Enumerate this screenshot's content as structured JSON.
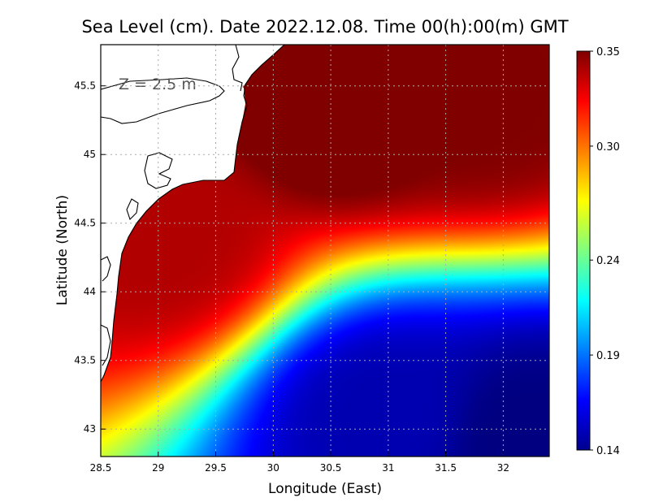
{
  "chart_data": {
    "type": "heatmap",
    "title": "Sea Level (cm). Date 2022.12.08. Time 00(h):00(m) GMT",
    "xlabel": "Longitude (East)",
    "ylabel": "Latitude (North)",
    "annotation": "Z = 2.5 m",
    "xlim": [
      28.5,
      32.4
    ],
    "ylim": [
      42.8,
      45.8
    ],
    "x_ticks": [
      28.5,
      29,
      29.5,
      30,
      30.5,
      31,
      31.5,
      32
    ],
    "x_tick_labels": [
      "28.5",
      "29",
      "29.5",
      "30",
      "30.5",
      "31",
      "31.5",
      "32"
    ],
    "y_ticks": [
      43,
      43.5,
      44,
      44.5,
      45,
      45.5
    ],
    "y_tick_labels": [
      "43",
      "43.5",
      "44",
      "44.5",
      "45",
      "45.5"
    ],
    "grid": true,
    "colorbar": {
      "ticks": [
        0.35,
        0.3,
        0.24,
        0.19,
        0.14
      ],
      "tick_labels": [
        "0.35",
        "0.30",
        "0.24",
        "0.19",
        "0.14"
      ],
      "range": [
        0.14,
        0.35
      ],
      "colormap": "jet"
    },
    "field_hotspots": [
      {
        "lon": 30.6,
        "lat": 45.4,
        "value": 0.36
      },
      {
        "lon": 31.8,
        "lat": 45.4,
        "value": 0.35
      },
      {
        "lon": 29.0,
        "lat": 44.4,
        "value": 0.34
      },
      {
        "lon": 31.0,
        "lat": 43.1,
        "value": 0.15
      },
      {
        "lon": 32.2,
        "lat": 42.95,
        "value": 0.14
      }
    ],
    "colors": {
      "land": "#ffffff",
      "coastline": "#000000",
      "grid": "#aaaaaa"
    }
  }
}
